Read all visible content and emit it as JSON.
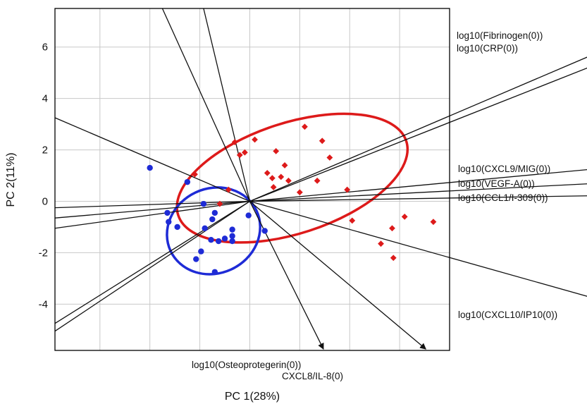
{
  "chart_data": {
    "type": "scatter",
    "title": "",
    "xlabel": "PC 1(28%)",
    "ylabel": "PC 2(11%)",
    "xlim": [
      -7.8,
      8
    ],
    "ylim": [
      -5.8,
      7.5
    ],
    "x_ticks": [
      -6,
      -4,
      -2,
      0,
      2,
      4,
      6
    ],
    "y_ticks": [
      6,
      4,
      2,
      0,
      -2,
      -4
    ],
    "y_tick_labels": [
      "6",
      "4",
      "2",
      "0",
      "-2",
      "-4"
    ],
    "grid": true,
    "series": [
      {
        "color": "#1e2bd6",
        "marker": "circle",
        "points": [
          [
            -4.0,
            1.3
          ],
          [
            -2.5,
            0.75
          ],
          [
            -3.3,
            -0.45
          ],
          [
            -3.25,
            -0.8
          ],
          [
            -2.9,
            -1.0
          ],
          [
            -1.85,
            -0.1
          ],
          [
            -1.4,
            -0.45
          ],
          [
            -1.5,
            -0.7
          ],
          [
            -1.8,
            -1.05
          ],
          [
            -1.55,
            -1.5
          ],
          [
            -1.25,
            -1.55
          ],
          [
            -1.0,
            -1.45
          ],
          [
            -0.7,
            -1.1
          ],
          [
            -0.7,
            -1.35
          ],
          [
            -0.7,
            -1.55
          ],
          [
            -1.95,
            -1.95
          ],
          [
            -2.15,
            -2.25
          ],
          [
            -1.4,
            -2.75
          ],
          [
            -0.05,
            -0.55
          ],
          [
            0.6,
            -1.15
          ]
        ]
      },
      {
        "color": "#dd1a1a",
        "marker": "diamond",
        "points": [
          [
            -2.2,
            1.05
          ],
          [
            -1.2,
            -0.1
          ],
          [
            -0.6,
            2.3
          ],
          [
            -0.4,
            1.8
          ],
          [
            -0.2,
            1.9
          ],
          [
            0.2,
            2.4
          ],
          [
            1.05,
            1.95
          ],
          [
            2.2,
            2.9
          ],
          [
            2.9,
            2.35
          ],
          [
            3.2,
            1.7
          ],
          [
            1.4,
            1.4
          ],
          [
            0.7,
            1.1
          ],
          [
            0.9,
            0.9
          ],
          [
            1.25,
            0.95
          ],
          [
            1.55,
            0.8
          ],
          [
            0.95,
            0.55
          ],
          [
            2.7,
            0.8
          ],
          [
            -0.85,
            0.45
          ],
          [
            2.0,
            0.35
          ],
          [
            3.9,
            0.45
          ],
          [
            4.1,
            -0.75
          ],
          [
            6.2,
            -0.6
          ],
          [
            7.35,
            -0.8
          ],
          [
            5.7,
            -1.05
          ],
          [
            5.25,
            -1.65
          ],
          [
            5.75,
            -2.2
          ]
        ]
      }
    ],
    "ellipses": [
      {
        "color": "#dd1a1a",
        "cx": 1.7,
        "cy": 0.9,
        "rx": 4.8,
        "ry": 2.15,
        "angle_deg": -18
      },
      {
        "color": "#1e2bd6",
        "cx": -1.45,
        "cy": -1.15,
        "rx": 1.9,
        "ry": 1.65,
        "angle_deg": -25
      }
    ],
    "loading_lines": [
      {
        "from": [
          0,
          0
        ],
        "to": [
          -3.5,
          7.5
        ],
        "arrow": false
      },
      {
        "from": [
          0,
          0
        ],
        "to": [
          -1.85,
          7.5
        ],
        "arrow": false
      },
      {
        "from": [
          0,
          0
        ],
        "to": [
          -7.8,
          3.25
        ],
        "arrow": false
      },
      {
        "from": [
          0,
          0
        ],
        "to": [
          -7.8,
          -0.25
        ],
        "arrow": false
      },
      {
        "from": [
          0,
          0
        ],
        "to": [
          -7.8,
          -0.65
        ],
        "arrow": false
      },
      {
        "from": [
          0,
          0
        ],
        "to": [
          -7.8,
          -1.05
        ],
        "arrow": false
      },
      {
        "from": [
          0,
          0
        ],
        "to": [
          -7.8,
          -4.75
        ],
        "arrow": false
      },
      {
        "from": [
          0,
          0
        ],
        "to": [
          -7.8,
          -5.05
        ],
        "arrow": false
      },
      {
        "from": [
          0,
          0
        ],
        "to": [
          15.9,
          6.6
        ],
        "arrow": true,
        "label_key": "fibrinogen"
      },
      {
        "from": [
          0,
          0
        ],
        "to": [
          15.9,
          6.1
        ],
        "arrow": true,
        "label_key": "crp"
      },
      {
        "from": [
          0,
          0
        ],
        "to": [
          15.9,
          1.45
        ],
        "arrow": true,
        "label_key": "cxcl9"
      },
      {
        "from": [
          0,
          0
        ],
        "to": [
          15.9,
          0.8
        ],
        "arrow": true,
        "label_key": "vegf"
      },
      {
        "from": [
          0,
          0
        ],
        "to": [
          15.9,
          0.25
        ],
        "arrow": true,
        "label_key": "ccl1"
      },
      {
        "from": [
          0,
          0
        ],
        "to": [
          15.9,
          -4.35
        ],
        "arrow": true,
        "label_key": "cxcl10"
      },
      {
        "from": [
          0,
          0
        ],
        "to": [
          2.95,
          -5.75
        ],
        "arrow": true,
        "label_key": "osteoprotegerin"
      },
      {
        "from": [
          0,
          0
        ],
        "to": [
          7.05,
          -5.75
        ],
        "arrow": true,
        "label_key": "cxcl8"
      }
    ]
  },
  "labels": {
    "fibrinogen": "log10(Fibrinogen(0))",
    "crp": "log10(CRP(0))",
    "cxcl9": "log10(CXCL9/MIG(0))",
    "vegf": "log10(VEGF-A(0))",
    "ccl1": "log10(CCL1/I-309(0))",
    "cxcl10": "log10(CXCL10/IP10(0))",
    "osteoprotegerin": "log10(Osteoprotegerin(0))",
    "cxcl8": "CXCL8/IL-8(0)"
  }
}
